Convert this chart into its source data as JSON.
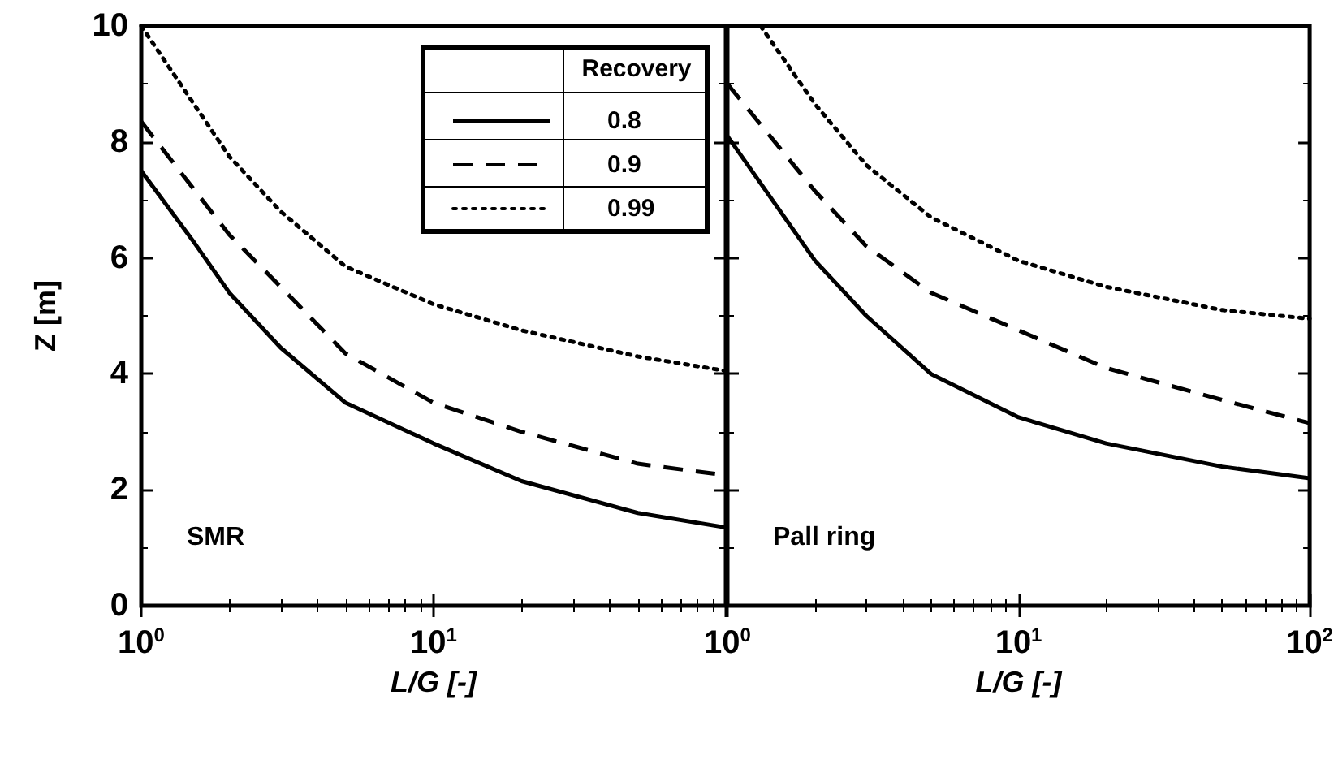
{
  "chart_data": [
    {
      "type": "line",
      "xlabel": "L/G [-]",
      "ylabel": "Z [m]",
      "legend_title": "Recovery",
      "legend": "top right",
      "log": "x",
      "grid": false,
      "marker": "none",
      "annotations": [
        "SMR"
      ],
      "xlim": [
        1,
        100
      ],
      "xticks": [
        {
          "value": 1,
          "label": "10$^{0}$"
        },
        {
          "value": 10,
          "label": "10$^{1}$"
        },
        {
          "value": 100,
          "label": null
        }
      ],
      "ylim": [
        0,
        10
      ],
      "yticks": [
        0,
        2,
        4,
        6,
        8,
        10
      ],
      "series": [
        {
          "name": "0.8",
          "color": "#000000",
          "line_style": "solid",
          "x": [
            1,
            1.5,
            2,
            3,
            5,
            10,
            20,
            50,
            100
          ],
          "values": [
            7.5,
            6.3,
            5.4,
            4.45,
            3.5,
            2.8,
            2.15,
            1.6,
            1.35
          ]
        },
        {
          "name": "0.9",
          "color": "#000000",
          "line_style": "dashed",
          "x": [
            1,
            2,
            3,
            5,
            10,
            20,
            50,
            100
          ],
          "values": [
            8.35,
            6.4,
            5.5,
            4.35,
            3.5,
            3.0,
            2.45,
            2.25
          ]
        },
        {
          "name": "0.99",
          "color": "#000000",
          "line_style": "dotted",
          "x": [
            1,
            2,
            3,
            5,
            10,
            20,
            50,
            100
          ],
          "values": [
            10,
            7.75,
            6.8,
            5.85,
            5.2,
            4.75,
            4.3,
            4.05
          ]
        }
      ]
    },
    {
      "type": "line",
      "xlabel": "L/G [-]",
      "log": "x",
      "grid": false,
      "marker": "none",
      "legend": false,
      "tick_labels": "x",
      "annotations": [
        "Pall ring"
      ],
      "xlim": [
        1,
        100
      ],
      "xticks": [
        {
          "value": 1,
          "label": "10$^{0}$"
        },
        {
          "value": 10,
          "label": "10$^{1}$"
        },
        {
          "value": 100,
          "label": "10$^{2}$"
        }
      ],
      "ylim": [
        0,
        10
      ],
      "yticks": [
        0,
        2,
        4,
        6,
        8,
        10
      ],
      "series": [
        {
          "color": "#000000",
          "line_style": "solid",
          "x": [
            1,
            2,
            3,
            5,
            10,
            20,
            50,
            100
          ],
          "values": [
            8.1,
            5.95,
            5.0,
            4.0,
            3.25,
            2.8,
            2.4,
            2.2
          ]
        },
        {
          "color": "#000000",
          "line_style": "dashed",
          "x": [
            1,
            2,
            3,
            5,
            10,
            20,
            50,
            100
          ],
          "values": [
            9.0,
            7.15,
            6.2,
            5.4,
            4.75,
            4.1,
            3.55,
            3.15
          ]
        },
        {
          "color": "#000000",
          "line_style": "dotted",
          "x": [
            1.3,
            2,
            3,
            5,
            10,
            20,
            50,
            100
          ],
          "values": [
            10,
            8.65,
            7.6,
            6.7,
            5.95,
            5.5,
            5.1,
            4.95
          ]
        }
      ]
    }
  ]
}
